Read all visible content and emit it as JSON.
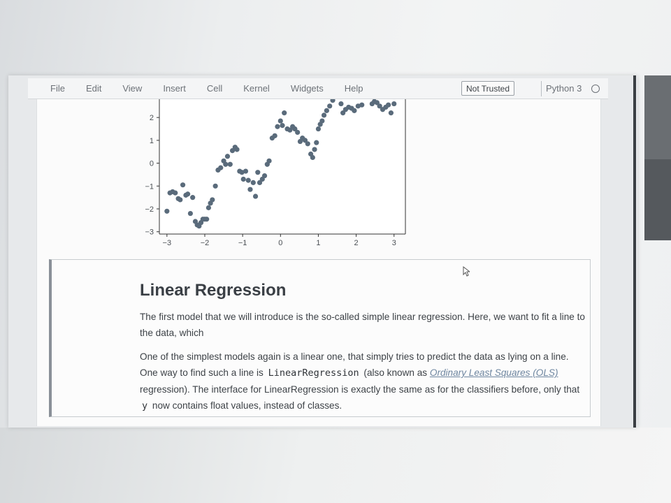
{
  "menubar": {
    "items": [
      "File",
      "Edit",
      "View",
      "Insert",
      "Cell",
      "Kernel",
      "Widgets",
      "Help"
    ],
    "trusted_label": "Not Trusted",
    "kernel_name": "Python 3"
  },
  "chart_data": {
    "type": "scatter",
    "title": "",
    "xlabel": "",
    "ylabel": "",
    "xlim": [
      -3.2,
      3.3
    ],
    "ylim": [
      -3.1,
      2.8
    ],
    "xticks": [
      -3,
      -2,
      -1,
      0,
      1,
      2,
      3
    ],
    "yticks": [
      -3,
      -2,
      -1,
      0,
      1,
      2
    ],
    "point_color": "#5a6b7b",
    "x": [
      -3.0,
      -2.92,
      -2.85,
      -2.78,
      -2.7,
      -2.65,
      -2.58,
      -2.5,
      -2.45,
      -2.38,
      -2.32,
      -2.25,
      -2.2,
      -2.15,
      -2.1,
      -2.05,
      -2.0,
      -1.95,
      -1.9,
      -1.85,
      -1.8,
      -1.72,
      -1.65,
      -1.58,
      -1.5,
      -1.45,
      -1.4,
      -1.33,
      -1.27,
      -1.2,
      -1.15,
      -1.08,
      -1.02,
      -0.98,
      -0.92,
      -0.85,
      -0.8,
      -0.72,
      -0.66,
      -0.6,
      -0.55,
      -0.48,
      -0.42,
      -0.35,
      -0.3,
      -0.22,
      -0.15,
      -0.08,
      0.0,
      0.05,
      0.1,
      0.18,
      0.25,
      0.32,
      0.38,
      0.45,
      0.52,
      0.58,
      0.65,
      0.72,
      0.8,
      0.85,
      0.9,
      0.95,
      1.0,
      1.05,
      1.1,
      1.15,
      1.22,
      1.3,
      1.38,
      1.45,
      1.52,
      1.6,
      1.65,
      1.72,
      1.8,
      1.88,
      1.95,
      2.05,
      2.15,
      2.25,
      2.35,
      2.42,
      2.48,
      2.55,
      2.62,
      2.7,
      2.78,
      2.85,
      2.92,
      3.0
    ],
    "y": [
      -2.1,
      -1.3,
      -1.25,
      -1.3,
      -1.55,
      -1.6,
      -0.95,
      -1.4,
      -1.35,
      -2.2,
      -1.5,
      -2.55,
      -2.7,
      -2.75,
      -2.6,
      -2.45,
      -2.45,
      -2.45,
      -1.95,
      -1.75,
      -1.6,
      -1.0,
      -0.3,
      -0.2,
      0.1,
      -0.05,
      0.3,
      -0.05,
      0.55,
      0.7,
      0.6,
      -0.35,
      -0.4,
      -0.7,
      -0.35,
      -0.75,
      -1.15,
      -0.85,
      -1.45,
      -0.4,
      -0.85,
      -0.7,
      -0.55,
      -0.05,
      0.1,
      1.1,
      1.2,
      1.6,
      1.85,
      1.65,
      2.2,
      1.5,
      1.45,
      1.6,
      1.5,
      1.35,
      0.95,
      1.1,
      1.0,
      0.85,
      0.4,
      0.25,
      0.6,
      0.9,
      1.5,
      1.7,
      1.85,
      2.1,
      2.3,
      2.5,
      2.75,
      2.95,
      3.1,
      2.6,
      2.2,
      2.35,
      2.45,
      2.4,
      2.3,
      2.5,
      2.55,
      2.9,
      3.0,
      2.6,
      2.7,
      2.65,
      2.5,
      2.35,
      2.45,
      2.55,
      2.2,
      2.6
    ]
  },
  "markdown": {
    "title": "Linear Regression",
    "p1": "The first model that we will introduce is the so-called simple linear regression. Here, we want to fit a line to the data, which",
    "p2_a": "One of the simplest models again is a linear one, that simply tries to predict the data as lying on a line. One way to find such a line is ",
    "p2_code": "LinearRegression",
    "p2_b": " (also known as ",
    "p2_link": "Ordinary Least Squares (OLS)",
    "p2_c": " regression). The interface for LinearRegression is exactly the same as for the classifiers before, only that ",
    "p2_code2": "y",
    "p2_d": " now contains float values, instead of classes."
  }
}
